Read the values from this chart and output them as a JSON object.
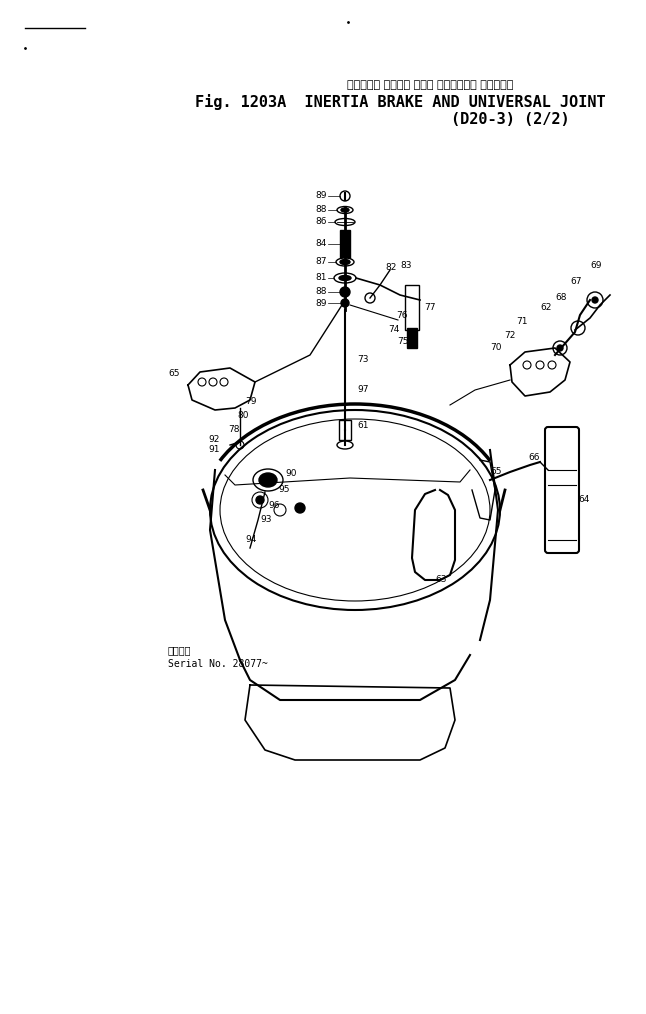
{
  "title_japanese": "イナーシャ ブレーキ および ユニバーサル ジョイント",
  "title_line1": "Fig. 1203A  INERTIA BRAKE AND UNIVERSAL JOINT",
  "title_line2": "(D20-3) (2/2)",
  "serial_line1": "適用号機",
  "serial_line2": "Serial No. 28077~",
  "bg_color": "#ffffff",
  "lc": "#000000",
  "title_fs": 11,
  "jp_fs": 8,
  "ann_fs": 6.5
}
